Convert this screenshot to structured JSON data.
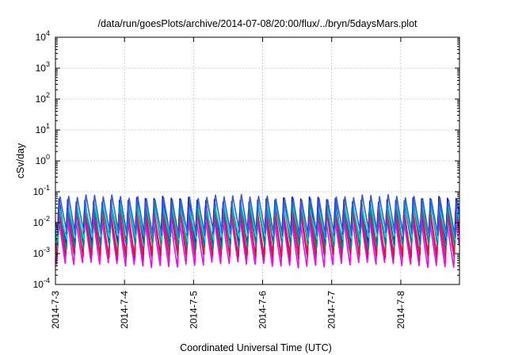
{
  "chart_data": {
    "type": "line",
    "title": "/data/run/goesPlots/archive/2014-07-08/20:00/flux/../bryn/5daysMars.plot",
    "xlabel": "Coordinated Universal Time (UTC)",
    "ylabel": "cSv/day",
    "y_scale": "log",
    "ylim": [
      0.0001,
      10000
    ],
    "xlim": [
      0,
      5.85
    ],
    "grid": true,
    "y_ticks": [
      {
        "base": "10",
        "exp": "-4",
        "value": 0.0001
      },
      {
        "base": "10",
        "exp": "-3",
        "value": 0.001
      },
      {
        "base": "10",
        "exp": "-2",
        "value": 0.01
      },
      {
        "base": "10",
        "exp": "-1",
        "value": 0.1
      },
      {
        "base": "10",
        "exp": "0",
        "value": 1
      },
      {
        "base": "10",
        "exp": "1",
        "value": 10
      },
      {
        "base": "10",
        "exp": "2",
        "value": 100
      },
      {
        "base": "10",
        "exp": "3",
        "value": 1000
      },
      {
        "base": "10",
        "exp": "4",
        "value": 10000
      }
    ],
    "x_ticks": [
      {
        "label": "2014-7-3",
        "value": 0
      },
      {
        "label": "2014-7-4",
        "value": 1
      },
      {
        "label": "2014-7-5",
        "value": 2
      },
      {
        "label": "2014-7-6",
        "value": 3
      },
      {
        "label": "2014-7-7",
        "value": 4
      },
      {
        "label": "2014-7-8",
        "value": 5
      }
    ],
    "cycle_period": 0.125,
    "series": [
      {
        "color": "#ff00ff",
        "peak": 0.018,
        "trough": 0.0004
      },
      {
        "color": "#c71585",
        "peak": 0.03,
        "trough": 0.0007
      },
      {
        "color": "#dc143c",
        "peak": 0.035,
        "trough": 0.0009
      },
      {
        "color": "#0000ff",
        "peak": 0.06,
        "trough": 0.002
      },
      {
        "color": "#008b8b",
        "peak": 0.045,
        "trough": 0.0015
      },
      {
        "color": "#00ced1",
        "peak": 0.04,
        "trough": 0.003
      },
      {
        "color": "#3a5fcd",
        "peak": 0.075,
        "trough": 0.004
      }
    ]
  }
}
